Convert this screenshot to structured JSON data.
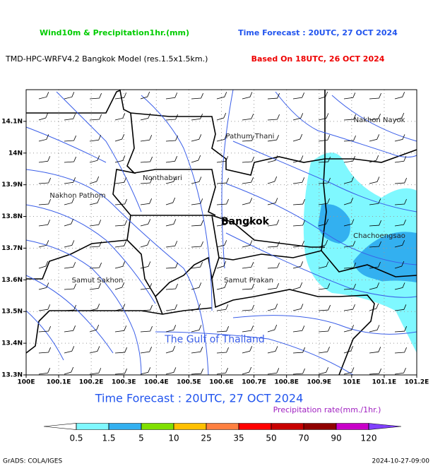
{
  "header": {
    "title": "Wind10m & Precipitation1hr.(mm)",
    "forecast": "Time Forecast : 20UTC, 27 OCT 2024",
    "model": "TMD-HPC-WRFV4.2 Bangkok Model (res.1.5x1.5km.)",
    "based_on": "Based On 18UTC, 26 OCT 2024"
  },
  "map": {
    "xlim": [
      100,
      101.2
    ],
    "ylim": [
      13.3,
      14.2
    ],
    "xticks": [
      {
        "value": 100,
        "label": "100E"
      },
      {
        "value": 100.1,
        "label": "100.1E"
      },
      {
        "value": 100.2,
        "label": "100.2E"
      },
      {
        "value": 100.3,
        "label": "100.3E"
      },
      {
        "value": 100.4,
        "label": "100.4E"
      },
      {
        "value": 100.5,
        "label": "100.5E"
      },
      {
        "value": 100.6,
        "label": "100.6E"
      },
      {
        "value": 100.7,
        "label": "100.7E"
      },
      {
        "value": 100.8,
        "label": "100.8E"
      },
      {
        "value": 100.9,
        "label": "100.9E"
      },
      {
        "value": 101,
        "label": "101E"
      },
      {
        "value": 101.1,
        "label": "101.1E"
      },
      {
        "value": 101.2,
        "label": "101.2E"
      }
    ],
    "yticks": [
      {
        "value": 13.3,
        "label": "13.3N"
      },
      {
        "value": 13.4,
        "label": "13.4N"
      },
      {
        "value": 13.5,
        "label": "13.5N"
      },
      {
        "value": 13.6,
        "label": "13.6N"
      },
      {
        "value": 13.7,
        "label": "13.7N"
      },
      {
        "value": 13.8,
        "label": "13.8N"
      },
      {
        "value": 13.9,
        "label": "13.9N"
      },
      {
        "value": 14,
        "label": "14N"
      },
      {
        "value": 14.1,
        "label": "14.1N"
      }
    ],
    "grid": true,
    "labels": [
      "Nakhon Nayok",
      "Pathum Thani",
      "Nonthaburi",
      "Nakhon Pathom",
      "Bangkok",
      "Chachoengsao",
      "Samut Sakhon",
      "Samut Prakan",
      "The Gulf of Thailand"
    ]
  },
  "footer": {
    "forecast": "Time Forecast : 20UTC, 27 OCT 2024",
    "colorbar_title": "Precipitation rate(mm./1hr.)",
    "levels": [
      0.5,
      1.5,
      5,
      10,
      25,
      35,
      50,
      70,
      90,
      120
    ],
    "colors": [
      "#ffffff",
      "#7ff8ff",
      "#33b0f0",
      "#80e000",
      "#ffc000",
      "#ff8040",
      "#ff0000",
      "#c80000",
      "#900000",
      "#c800c8",
      "#8040ff"
    ],
    "credit": "GrADS: COLA/IGES",
    "timestamp": "2024-10-27-09:00"
  }
}
